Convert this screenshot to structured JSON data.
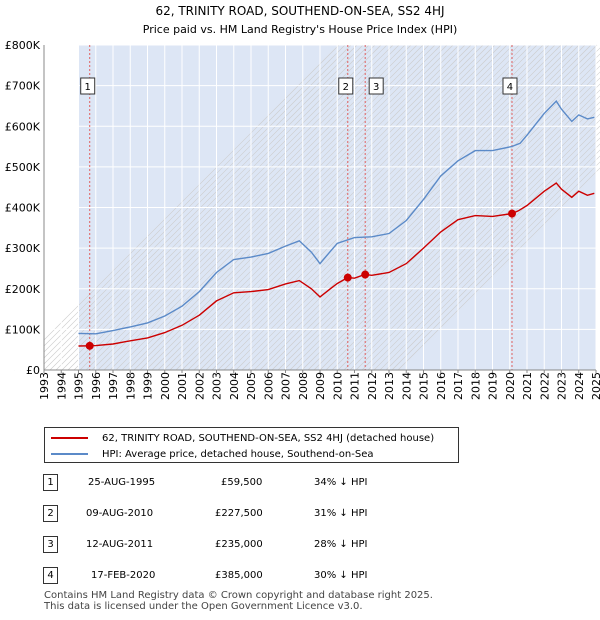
{
  "chart_data": {
    "type": "line",
    "title": "62, TRINITY ROAD, SOUTHEND-ON-SEA, SS2 4HJ",
    "subtitle": "Price paid vs. HM Land Registry's House Price Index (HPI)",
    "xlim": [
      1993,
      2025
    ],
    "ylim": [
      0,
      800000
    ],
    "x_ticks": [
      "1993",
      "1994",
      "1995",
      "1996",
      "1997",
      "1998",
      "1999",
      "2000",
      "2001",
      "2002",
      "2003",
      "2004",
      "2005",
      "2006",
      "2007",
      "2008",
      "2009",
      "2010",
      "2011",
      "2012",
      "2013",
      "2014",
      "2015",
      "2016",
      "2017",
      "2018",
      "2019",
      "2020",
      "2021",
      "2022",
      "2023",
      "2024",
      "2025"
    ],
    "y_ticks": [
      {
        "value": 0,
        "label": "£0"
      },
      {
        "value": 100000,
        "label": "£100K"
      },
      {
        "value": 200000,
        "label": "£200K"
      },
      {
        "value": 300000,
        "label": "£300K"
      },
      {
        "value": 400000,
        "label": "£400K"
      },
      {
        "value": 500000,
        "label": "£500K"
      },
      {
        "value": 600000,
        "label": "£600K"
      },
      {
        "value": 700000,
        "label": "£700K"
      },
      {
        "value": 800000,
        "label": "£800K"
      }
    ],
    "shaded_range": [
      1995.0,
      2025.0
    ],
    "series": [
      {
        "name": "62, TRINITY ROAD, SOUTHEND-ON-SEA, SS2 4HJ (detached house)",
        "color": "#cc0000",
        "points": [
          [
            1995.0,
            59000
          ],
          [
            1995.65,
            59500
          ],
          [
            1996.0,
            60000
          ],
          [
            1997.0,
            64000
          ],
          [
            1998.0,
            72000
          ],
          [
            1999.0,
            79000
          ],
          [
            2000.0,
            92000
          ],
          [
            2001.0,
            110000
          ],
          [
            2002.0,
            135000
          ],
          [
            2003.0,
            170000
          ],
          [
            2004.0,
            190000
          ],
          [
            2005.0,
            193000
          ],
          [
            2006.0,
            198000
          ],
          [
            2007.0,
            212000
          ],
          [
            2007.8,
            220000
          ],
          [
            2008.5,
            200000
          ],
          [
            2009.0,
            180000
          ],
          [
            2009.6,
            200000
          ],
          [
            2010.0,
            213000
          ],
          [
            2010.6,
            227500
          ],
          [
            2011.0,
            226000
          ],
          [
            2011.6,
            235000
          ],
          [
            2012.0,
            233000
          ],
          [
            2013.0,
            240000
          ],
          [
            2014.0,
            262000
          ],
          [
            2015.0,
            300000
          ],
          [
            2016.0,
            340000
          ],
          [
            2017.0,
            370000
          ],
          [
            2018.0,
            380000
          ],
          [
            2019.0,
            378000
          ],
          [
            2020.12,
            385000
          ],
          [
            2020.5,
            392000
          ],
          [
            2021.0,
            405000
          ],
          [
            2022.0,
            440000
          ],
          [
            2022.7,
            460000
          ],
          [
            2023.0,
            445000
          ],
          [
            2023.6,
            425000
          ],
          [
            2024.0,
            440000
          ],
          [
            2024.5,
            430000
          ],
          [
            2024.9,
            435000
          ]
        ]
      },
      {
        "name": "HPI: Average price, detached house, Southend-on-Sea",
        "color": "#5b8ac8",
        "points": [
          [
            1995.0,
            90000
          ],
          [
            1996.0,
            89000
          ],
          [
            1997.0,
            97000
          ],
          [
            1998.0,
            106000
          ],
          [
            1999.0,
            116000
          ],
          [
            2000.0,
            133000
          ],
          [
            2001.0,
            157000
          ],
          [
            2002.0,
            193000
          ],
          [
            2003.0,
            240000
          ],
          [
            2004.0,
            272000
          ],
          [
            2005.0,
            278000
          ],
          [
            2006.0,
            287000
          ],
          [
            2007.0,
            305000
          ],
          [
            2007.8,
            318000
          ],
          [
            2008.5,
            290000
          ],
          [
            2009.0,
            262000
          ],
          [
            2009.6,
            292000
          ],
          [
            2010.0,
            312000
          ],
          [
            2011.0,
            326000
          ],
          [
            2012.0,
            328000
          ],
          [
            2013.0,
            336000
          ],
          [
            2014.0,
            368000
          ],
          [
            2015.0,
            420000
          ],
          [
            2016.0,
            478000
          ],
          [
            2017.0,
            515000
          ],
          [
            2018.0,
            540000
          ],
          [
            2019.0,
            540000
          ],
          [
            2020.1,
            550000
          ],
          [
            2020.6,
            558000
          ],
          [
            2021.0,
            578000
          ],
          [
            2022.0,
            632000
          ],
          [
            2022.7,
            662000
          ],
          [
            2023.0,
            642000
          ],
          [
            2023.6,
            612000
          ],
          [
            2024.0,
            628000
          ],
          [
            2024.5,
            618000
          ],
          [
            2024.9,
            622000
          ]
        ]
      }
    ],
    "markers": [
      {
        "label": "1",
        "x": 1995.65,
        "y": 59500
      },
      {
        "label": "2",
        "x": 2010.61,
        "y": 227500
      },
      {
        "label": "3",
        "x": 2011.62,
        "y": 235000
      },
      {
        "label": "4",
        "x": 2020.13,
        "y": 385000
      }
    ]
  },
  "legend": {
    "property_label": "62, TRINITY ROAD, SOUTHEND-ON-SEA, SS2 4HJ (detached house)",
    "hpi_label": "HPI: Average price, detached house, Southend-on-Sea",
    "property_color": "#cc0000",
    "hpi_color": "#5b8ac8"
  },
  "sales": [
    {
      "num": "1",
      "date": "25-AUG-1995",
      "price": "£59,500",
      "hpi": "34% ↓ HPI"
    },
    {
      "num": "2",
      "date": "09-AUG-2010",
      "price": "£227,500",
      "hpi": "31% ↓ HPI"
    },
    {
      "num": "3",
      "date": "12-AUG-2011",
      "price": "£235,000",
      "hpi": "28% ↓ HPI"
    },
    {
      "num": "4",
      "date": "17-FEB-2020",
      "price": "£385,000",
      "hpi": "30% ↓ HPI"
    }
  ],
  "footer": {
    "line1": "Contains HM Land Registry data © Crown copyright and database right 2025.",
    "line2": "This data is licensed under the Open Government Licence v3.0."
  }
}
